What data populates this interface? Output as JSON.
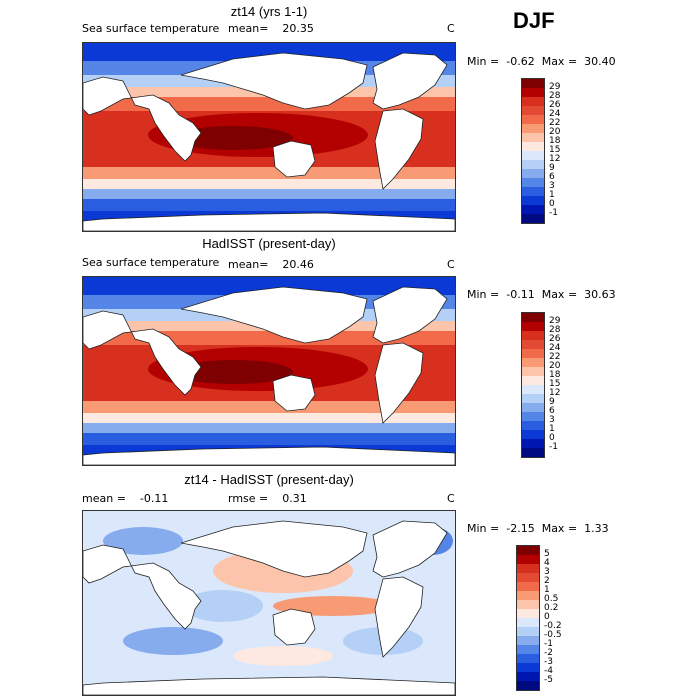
{
  "season": "DJF",
  "panels": [
    {
      "title": "zt14 (yrs 1-1)",
      "variable": "Sea surface temperature",
      "stat1_label": "mean=",
      "stat1_value": "20.35",
      "unit": "C",
      "min_label": "Min =",
      "min_value": "-0.62",
      "max_label": "Max =",
      "max_value": "30.40",
      "colorbar": {
        "labels": [
          "29",
          "28",
          "26",
          "24",
          "22",
          "20",
          "18",
          "15",
          "12",
          "9",
          "6",
          "3",
          "1",
          "0",
          "-1"
        ],
        "colors": [
          "#7f0000",
          "#b30000",
          "#d7301f",
          "#e34a33",
          "#f16b4a",
          "#f89a74",
          "#fcc5ab",
          "#fde9df",
          "#dbe8fb",
          "#b5d0f7",
          "#86acee",
          "#5585e6",
          "#2a5ee0",
          "#0a39d5",
          "#0016b0",
          "#000a80"
        ]
      }
    },
    {
      "title": "HadISST (present-day)",
      "variable": "Sea surface temperature",
      "stat1_label": "mean=",
      "stat1_value": "20.46",
      "unit": "C",
      "min_label": "Min =",
      "min_value": "-0.11",
      "max_label": "Max =",
      "max_value": "30.63",
      "colorbar": {
        "labels": [
          "29",
          "28",
          "26",
          "24",
          "22",
          "20",
          "18",
          "15",
          "12",
          "9",
          "6",
          "3",
          "1",
          "0",
          "-1"
        ],
        "colors": [
          "#7f0000",
          "#b30000",
          "#d7301f",
          "#e34a33",
          "#f16b4a",
          "#f89a74",
          "#fcc5ab",
          "#fde9df",
          "#dbe8fb",
          "#b5d0f7",
          "#86acee",
          "#5585e6",
          "#2a5ee0",
          "#0a39d5",
          "#0016b0",
          "#000a80"
        ]
      }
    },
    {
      "title": "zt14 - HadISST (present-day)",
      "stat1_label": "mean =",
      "stat1_value": "-0.11",
      "stat2_label": "rmse =",
      "stat2_value": "0.31",
      "unit": "C",
      "min_label": "Min =",
      "min_value": "-2.15",
      "max_label": "Max =",
      "max_value": "1.33",
      "colorbar": {
        "labels": [
          "5",
          "4",
          "3",
          "2",
          "1",
          "0.5",
          "0.2",
          "0",
          "-0.2",
          "-0.5",
          "-1",
          "-2",
          "-3",
          "-4",
          "-5"
        ],
        "colors": [
          "#7f0000",
          "#b30000",
          "#d7301f",
          "#e34a33",
          "#f16b4a",
          "#f89a74",
          "#fcc5ab",
          "#fde9df",
          "#dbe8fb",
          "#b5d0f7",
          "#86acee",
          "#5585e6",
          "#2a5ee0",
          "#0a39d5",
          "#0016b0",
          "#000a80"
        ]
      }
    }
  ]
}
